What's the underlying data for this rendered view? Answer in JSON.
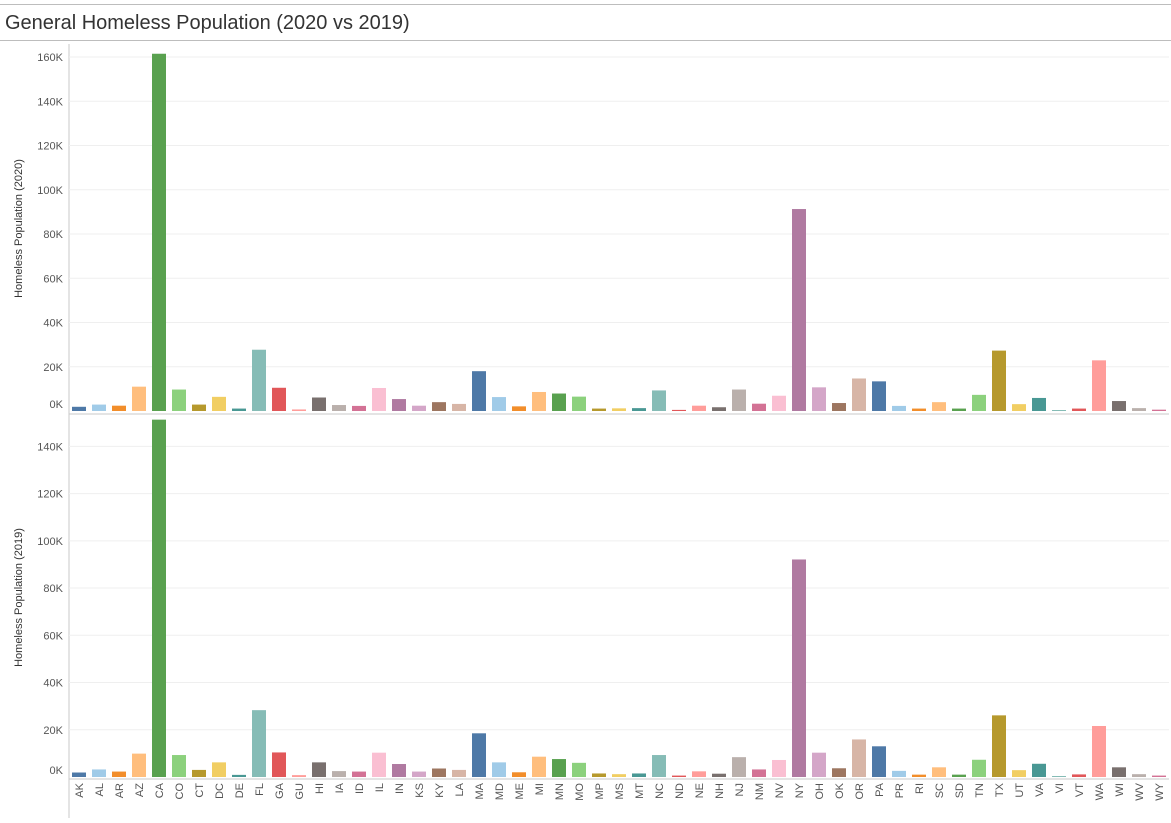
{
  "title": "General Homeless Population (2020 vs 2019)",
  "chart_data": {
    "type": "bar",
    "categories": [
      "AK",
      "AL",
      "AR",
      "AZ",
      "CA",
      "CO",
      "CT",
      "DC",
      "DE",
      "FL",
      "GA",
      "GU",
      "HI",
      "IA",
      "ID",
      "IL",
      "IN",
      "KS",
      "KY",
      "LA",
      "MA",
      "MD",
      "ME",
      "MI",
      "MN",
      "MO",
      "MP",
      "MS",
      "MT",
      "NC",
      "ND",
      "NE",
      "NH",
      "NJ",
      "NM",
      "NV",
      "NY",
      "OH",
      "OK",
      "OR",
      "PA",
      "PR",
      "RI",
      "SC",
      "SD",
      "TN",
      "TX",
      "UT",
      "VA",
      "VI",
      "VT",
      "WA",
      "WI",
      "WV",
      "WY"
    ],
    "colors": [
      "#4e79a7",
      "#a0cbe8",
      "#f28e2b",
      "#ffbe7d",
      "#59a14f",
      "#8cd17d",
      "#b6992d",
      "#f1ce63",
      "#499894",
      "#86bcb6",
      "#e15759",
      "#ff9d9a",
      "#79706e",
      "#bab0ac",
      "#d37295",
      "#fabfd2",
      "#b07aa1",
      "#d4a6c8",
      "#9d7660",
      "#d7b5a6"
    ],
    "grid": true,
    "panes": [
      {
        "ylabel": "Homeless Population (2020)",
        "ylim": [
          0,
          165000
        ],
        "ticks": [
          0,
          20000,
          40000,
          60000,
          80000,
          100000,
          120000,
          140000,
          160000
        ],
        "tick_labels": [
          "0K",
          "20K",
          "40K",
          "60K",
          "80K",
          "100K",
          "120K",
          "140K",
          "160K"
        ],
        "values": [
          1900,
          2900,
          2400,
          11000,
          161500,
          9700,
          2900,
          6400,
          1100,
          27700,
          10500,
          700,
          6100,
          2700,
          2300,
          10400,
          5400,
          2400,
          4000,
          3200,
          18000,
          6300,
          2100,
          8600,
          7900,
          6500,
          1100,
          1200,
          1300,
          9300,
          500,
          2400,
          1700,
          9700,
          3300,
          6900,
          91300,
          10700,
          3600,
          14700,
          13400,
          2300,
          1100,
          4000,
          1100,
          7300,
          27300,
          3100,
          5900,
          300,
          1100,
          22900,
          4500,
          1300,
          600
        ]
      },
      {
        "ylabel": "Homeless Population (2019)",
        "ylim": [
          0,
          152000
        ],
        "ticks": [
          0,
          20000,
          40000,
          60000,
          80000,
          100000,
          120000,
          140000
        ],
        "tick_labels": [
          "0K",
          "20K",
          "40K",
          "60K",
          "80K",
          "100K",
          "120K",
          "140K"
        ],
        "values": [
          1900,
          3200,
          2300,
          9900,
          151300,
          9300,
          3000,
          6200,
          900,
          28300,
          10400,
          800,
          6200,
          2500,
          2300,
          10300,
          5500,
          2300,
          3600,
          3000,
          18500,
          6200,
          2000,
          8600,
          7600,
          6000,
          1500,
          1200,
          1500,
          9300,
          600,
          2400,
          1400,
          8400,
          3200,
          7200,
          92100,
          10300,
          3700,
          15900,
          13000,
          2600,
          1000,
          4100,
          1000,
          7300,
          26100,
          2900,
          5600,
          200,
          1100,
          21600,
          4100,
          1200,
          600
        ]
      }
    ]
  }
}
